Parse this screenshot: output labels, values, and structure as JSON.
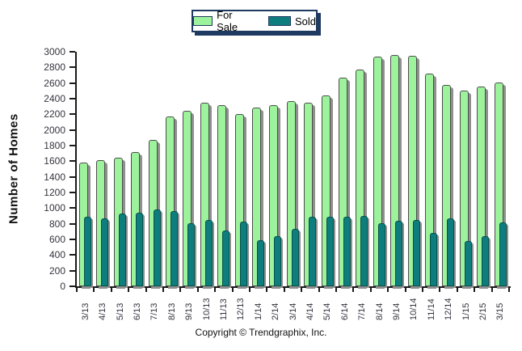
{
  "legend": {
    "items": [
      {
        "label": "For Sale",
        "color": "#9cf39c"
      },
      {
        "label": "Sold",
        "color": "#0e7d7d"
      }
    ]
  },
  "chart_data": {
    "type": "bar",
    "title": "",
    "xlabel": "",
    "ylabel": "Number of Homes",
    "ylim": [
      0,
      3000
    ],
    "y_tick_step": 200,
    "y_ticks": [
      0,
      200,
      400,
      600,
      800,
      1000,
      1200,
      1400,
      1600,
      1800,
      2000,
      2200,
      2400,
      2600,
      2800,
      3000
    ],
    "grid": false,
    "legend_position": "top-center",
    "categories": [
      "3/13",
      "4/13",
      "5/13",
      "6/13",
      "7/13",
      "8/13",
      "9/13",
      "10/13",
      "11/13",
      "12/13",
      "1/14",
      "2/14",
      "3/14",
      "4/14",
      "5/14",
      "6/14",
      "7/14",
      "8/14",
      "9/14",
      "10/14",
      "11/14",
      "12/14",
      "1/15",
      "2/15",
      "3/15"
    ],
    "series": [
      {
        "name": "For Sale",
        "color": "#9cf39c",
        "values": [
          1580,
          1610,
          1640,
          1720,
          1870,
          2170,
          2240,
          2350,
          2320,
          2200,
          2290,
          2320,
          2370,
          2350,
          2440,
          2670,
          2770,
          2940,
          2960,
          2950,
          2720,
          2580,
          2500,
          2560,
          2610
        ]
      },
      {
        "name": "Sold",
        "color": "#0e7d7d",
        "values": [
          890,
          870,
          930,
          940,
          980,
          960,
          810,
          850,
          710,
          830,
          590,
          640,
          730,
          890,
          890,
          890,
          900,
          810,
          840,
          850,
          680,
          870,
          580,
          640,
          820
        ]
      }
    ]
  },
  "footer": {
    "copyright": "Copyright © Trendgraphix, Inc."
  }
}
